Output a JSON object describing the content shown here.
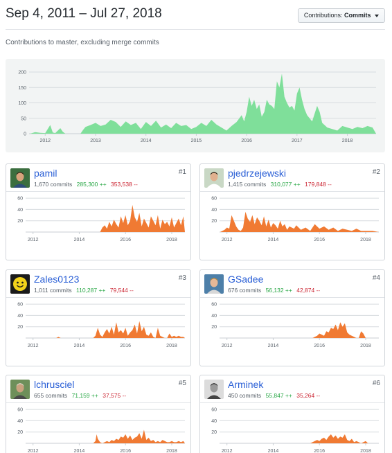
{
  "header": {
    "title": "Sep 4, 2011 – Jul 27, 2018",
    "contributions_label": "Contributions:",
    "contributions_value": "Commits"
  },
  "subtitle": "Contributions to master, excluding merge commits",
  "colors": {
    "main_area": "#7fdf9a",
    "card_area": "#f07a33",
    "link": "#2a5fd6",
    "additions": "#28a745",
    "deletions": "#cb2431"
  },
  "chart_data": [
    {
      "type": "area",
      "title": "",
      "y_ticks": [
        "0",
        "50",
        "100",
        "150",
        "200"
      ],
      "ylim": [
        0,
        200
      ],
      "x_ticks": [
        "2012",
        "2013",
        "2014",
        "2015",
        "2016",
        "2017",
        "2018"
      ],
      "xlim": [
        2011.68,
        2018.57
      ],
      "grid": true,
      "series": [
        {
          "x": [
            2011.7,
            2011.8,
            2011.9,
            2012.0,
            2012.1,
            2012.15,
            2012.2,
            2012.3,
            2012.35,
            2012.4,
            2012.5,
            2012.6,
            2012.7,
            2012.75,
            2012.8,
            2012.9,
            2013.0,
            2013.1,
            2013.2,
            2013.3,
            2013.4,
            2013.5,
            2013.6,
            2013.7,
            2013.8,
            2013.9,
            2014.0,
            2014.1,
            2014.2,
            2014.3,
            2014.4,
            2014.5,
            2014.6,
            2014.7,
            2014.8,
            2014.9,
            2015.0,
            2015.1,
            2015.2,
            2015.3,
            2015.4,
            2015.5,
            2015.6,
            2015.7,
            2015.8,
            2015.9,
            2015.95,
            2016.0,
            2016.05,
            2016.1,
            2016.15,
            2016.2,
            2016.25,
            2016.3,
            2016.35,
            2016.4,
            2016.45,
            2016.5,
            2016.55,
            2016.6,
            2016.65,
            2016.7,
            2016.75,
            2016.8,
            2016.85,
            2016.9,
            2016.95,
            2017.0,
            2017.05,
            2017.1,
            2017.15,
            2017.2,
            2017.3,
            2017.4,
            2017.45,
            2017.5,
            2017.6,
            2017.7,
            2017.8,
            2017.9,
            2018.0,
            2018.1,
            2018.2,
            2018.3,
            2018.4,
            2018.5,
            2018.57
          ],
          "values": [
            0,
            5,
            3,
            2,
            28,
            4,
            2,
            18,
            6,
            0,
            0,
            0,
            0,
            12,
            22,
            28,
            35,
            25,
            30,
            45,
            38,
            22,
            40,
            28,
            35,
            15,
            38,
            25,
            42,
            20,
            30,
            18,
            35,
            25,
            28,
            15,
            22,
            35,
            25,
            45,
            30,
            20,
            10,
            25,
            38,
            60,
            40,
            70,
            120,
            90,
            110,
            80,
            95,
            55,
            70,
            110,
            95,
            90,
            80,
            170,
            150,
            195,
            120,
            100,
            85,
            90,
            75,
            130,
            150,
            110,
            80,
            60,
            40,
            90,
            70,
            35,
            20,
            15,
            10,
            25,
            20,
            15,
            22,
            18,
            25,
            20,
            0
          ]
        }
      ]
    }
  ],
  "contributors": [
    {
      "rank": "#1",
      "login": "pamil",
      "commits": "1,670 commits",
      "additions": "285,300 ++",
      "deletions": "353,538 --",
      "avatar_icon": "avatar-photo-group",
      "chart_data": {
        "type": "area",
        "y_ticks": [
          "20",
          "40",
          "60"
        ],
        "ylim": [
          0,
          70
        ],
        "x_ticks": [
          "2012",
          "2014",
          "2016",
          "2018"
        ],
        "xlim": [
          2011.68,
          2018.57
        ],
        "x": [
          2014.9,
          2015.0,
          2015.1,
          2015.2,
          2015.3,
          2015.4,
          2015.5,
          2015.6,
          2015.7,
          2015.8,
          2015.9,
          2016.0,
          2016.1,
          2016.2,
          2016.3,
          2016.4,
          2016.5,
          2016.6,
          2016.7,
          2016.8,
          2016.9,
          2017.0,
          2017.1,
          2017.2,
          2017.3,
          2017.4,
          2017.5,
          2017.6,
          2017.7,
          2017.8,
          2017.9,
          2018.0,
          2018.1,
          2018.2,
          2018.3,
          2018.4,
          2018.5,
          2018.57
        ],
        "values": [
          0,
          8,
          12,
          6,
          18,
          10,
          22,
          14,
          8,
          28,
          16,
          30,
          12,
          20,
          48,
          26,
          18,
          34,
          10,
          24,
          16,
          8,
          28,
          20,
          12,
          30,
          6,
          22,
          14,
          18,
          10,
          26,
          8,
          16,
          24,
          12,
          28,
          0
        ]
      }
    },
    {
      "rank": "#2",
      "login": "pjedrzejewski",
      "commits": "1,415 commits",
      "additions": "310,077 ++",
      "deletions": "179,848 --",
      "avatar_icon": "avatar-photo-man",
      "chart_data": {
        "type": "area",
        "y_ticks": [
          "20",
          "40",
          "60"
        ],
        "ylim": [
          0,
          70
        ],
        "x_ticks": [
          "2012",
          "2014",
          "2016",
          "2018"
        ],
        "xlim": [
          2011.68,
          2018.57
        ],
        "x": [
          2011.7,
          2011.9,
          2012.0,
          2012.1,
          2012.2,
          2012.4,
          2012.5,
          2012.6,
          2012.7,
          2012.8,
          2012.9,
          2013.0,
          2013.1,
          2013.2,
          2013.3,
          2013.4,
          2013.5,
          2013.6,
          2013.7,
          2013.8,
          2013.9,
          2014.0,
          2014.1,
          2014.2,
          2014.3,
          2014.4,
          2014.5,
          2014.6,
          2014.7,
          2014.8,
          2014.9,
          2015.0,
          2015.2,
          2015.4,
          2015.6,
          2015.8,
          2016.0,
          2016.2,
          2016.4,
          2016.6,
          2016.8,
          2017.0,
          2017.2,
          2017.4,
          2017.6,
          2017.8,
          2018.0,
          2018.3,
          2018.57
        ],
        "values": [
          0,
          4,
          8,
          6,
          30,
          10,
          4,
          2,
          8,
          36,
          24,
          18,
          30,
          14,
          26,
          20,
          12,
          28,
          10,
          22,
          8,
          16,
          12,
          6,
          20,
          10,
          14,
          4,
          10,
          8,
          6,
          12,
          4,
          8,
          2,
          14,
          6,
          10,
          4,
          8,
          2,
          6,
          4,
          2,
          6,
          2,
          2,
          2,
          0
        ]
      }
    },
    {
      "rank": "#3",
      "login": "Zales0123",
      "commits": "1,011 commits",
      "additions": "110,287 ++",
      "deletions": "79,544 --",
      "avatar_icon": "avatar-yellow-smiley",
      "chart_data": {
        "type": "area",
        "y_ticks": [
          "20",
          "40",
          "60"
        ],
        "ylim": [
          0,
          70
        ],
        "x_ticks": [
          "2012",
          "2014",
          "2016",
          "2018"
        ],
        "xlim": [
          2011.68,
          2018.57
        ],
        "x": [
          2013.0,
          2013.1,
          2013.2,
          2014.6,
          2014.7,
          2014.8,
          2014.9,
          2015.0,
          2015.1,
          2015.2,
          2015.3,
          2015.4,
          2015.5,
          2015.6,
          2015.7,
          2015.8,
          2015.9,
          2016.0,
          2016.1,
          2016.2,
          2016.3,
          2016.4,
          2016.5,
          2016.6,
          2016.7,
          2016.8,
          2016.9,
          2017.0,
          2017.1,
          2017.2,
          2017.3,
          2017.4,
          2017.5,
          2017.6,
          2017.7,
          2017.8,
          2017.9,
          2018.0,
          2018.1,
          2018.2,
          2018.3,
          2018.4,
          2018.5,
          2018.57
        ],
        "values": [
          0,
          2,
          0,
          0,
          4,
          18,
          6,
          2,
          10,
          16,
          8,
          20,
          6,
          28,
          10,
          14,
          8,
          18,
          4,
          10,
          14,
          24,
          8,
          30,
          12,
          20,
          6,
          4,
          10,
          2,
          0,
          18,
          4,
          2,
          0,
          0,
          8,
          2,
          4,
          2,
          4,
          2,
          2,
          0
        ]
      }
    },
    {
      "rank": "#4",
      "login": "GSadee",
      "commits": "676 commits",
      "additions": "56,132 ++",
      "deletions": "42,874 --",
      "avatar_icon": "avatar-photo-woman",
      "chart_data": {
        "type": "area",
        "y_ticks": [
          "20",
          "40",
          "60"
        ],
        "ylim": [
          0,
          70
        ],
        "x_ticks": [
          "2012",
          "2014",
          "2016",
          "2018"
        ],
        "xlim": [
          2011.68,
          2018.57
        ],
        "x": [
          2015.7,
          2015.8,
          2015.9,
          2016.0,
          2016.1,
          2016.2,
          2016.3,
          2016.4,
          2016.5,
          2016.6,
          2016.7,
          2016.8,
          2016.9,
          2017.0,
          2017.1,
          2017.2,
          2017.3,
          2017.4,
          2017.5,
          2017.6,
          2017.7,
          2017.8,
          2017.9,
          2018.0
        ],
        "values": [
          0,
          2,
          4,
          8,
          6,
          4,
          12,
          10,
          18,
          16,
          24,
          14,
          28,
          20,
          26,
          10,
          6,
          4,
          2,
          0,
          0,
          12,
          8,
          0
        ]
      }
    },
    {
      "rank": "#5",
      "login": "lchrusciel",
      "commits": "655 commits",
      "additions": "71,159 ++",
      "deletions": "37,575 --",
      "avatar_icon": "avatar-photo-outdoor",
      "chart_data": {
        "type": "area",
        "y_ticks": [
          "20",
          "40",
          "60"
        ],
        "ylim": [
          0,
          70
        ],
        "x_ticks": [
          "2012",
          "2014",
          "2016",
          "2018"
        ],
        "xlim": [
          2011.68,
          2018.57
        ],
        "x": [
          2014.6,
          2014.7,
          2014.75,
          2014.8,
          2014.9,
          2015.0,
          2015.1,
          2015.2,
          2015.3,
          2015.4,
          2015.5,
          2015.6,
          2015.7,
          2015.8,
          2015.9,
          2016.0,
          2016.1,
          2016.2,
          2016.3,
          2016.4,
          2016.5,
          2016.6,
          2016.7,
          2016.8,
          2016.9,
          2017.0,
          2017.1,
          2017.2,
          2017.3,
          2017.4,
          2017.5,
          2017.6,
          2017.7,
          2017.8,
          2017.9,
          2018.0,
          2018.1,
          2018.2,
          2018.3,
          2018.4,
          2018.5,
          2018.57
        ],
        "values": [
          0,
          4,
          16,
          8,
          2,
          0,
          2,
          4,
          2,
          6,
          4,
          8,
          6,
          12,
          10,
          16,
          8,
          14,
          6,
          10,
          12,
          18,
          8,
          24,
          6,
          10,
          4,
          6,
          2,
          4,
          2,
          6,
          4,
          2,
          2,
          4,
          2,
          2,
          4,
          2,
          4,
          0
        ]
      }
    },
    {
      "rank": "#6",
      "login": "Arminek",
      "commits": "450 commits",
      "additions": "55,847 ++",
      "deletions": "35,264 --",
      "avatar_icon": "avatar-photo-bw",
      "chart_data": {
        "type": "area",
        "y_ticks": [
          "20",
          "40",
          "60"
        ],
        "ylim": [
          0,
          70
        ],
        "x_ticks": [
          "2012",
          "2014",
          "2016",
          "2018"
        ],
        "xlim": [
          2011.68,
          2018.57
        ],
        "x": [
          2015.6,
          2015.7,
          2015.8,
          2015.9,
          2016.0,
          2016.1,
          2016.2,
          2016.3,
          2016.4,
          2016.5,
          2016.6,
          2016.7,
          2016.8,
          2016.9,
          2017.0,
          2017.1,
          2017.2,
          2017.3,
          2017.4,
          2017.5,
          2017.6,
          2017.7,
          2017.8,
          2017.9,
          2018.0,
          2018.1
        ],
        "values": [
          0,
          2,
          4,
          6,
          4,
          8,
          10,
          6,
          12,
          16,
          10,
          14,
          8,
          12,
          10,
          16,
          6,
          4,
          8,
          2,
          4,
          2,
          0,
          2,
          4,
          0
        ]
      }
    }
  ]
}
